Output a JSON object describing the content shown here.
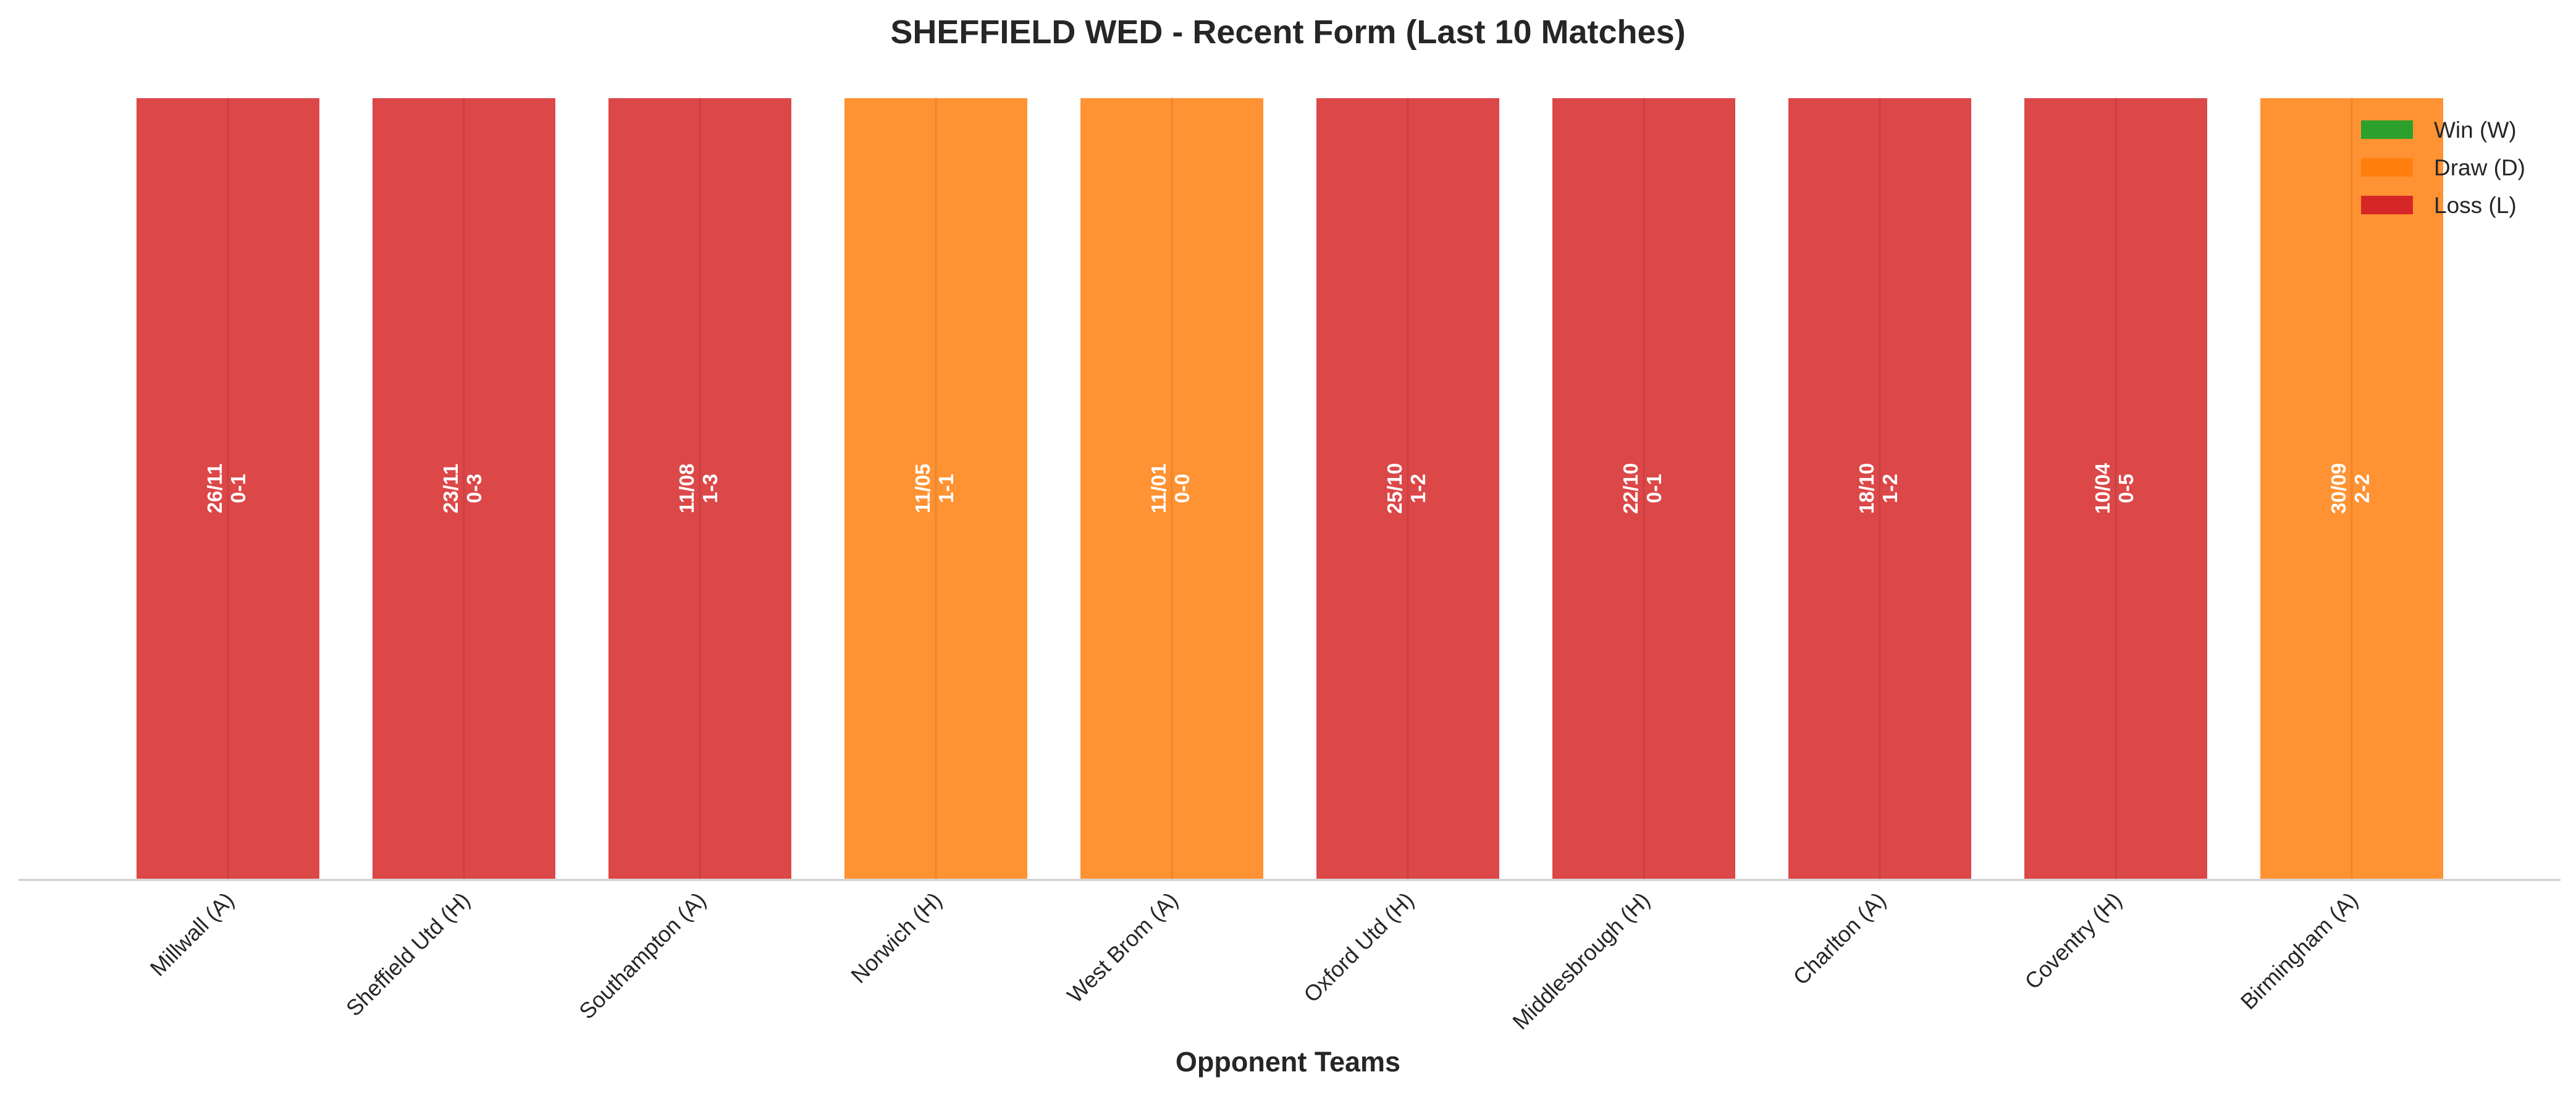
{
  "chart_data": {
    "type": "bar",
    "title": "SHEFFIELD WED - Recent Form (Last 10 Matches)",
    "xlabel": "Opponent Teams",
    "ylabel": "",
    "grid": false,
    "legend_position": "top-right",
    "legend": [
      {
        "label": "Win (W)",
        "color": "#2ca02c"
      },
      {
        "label": "Draw (D)",
        "color": "#ff7f0e"
      },
      {
        "label": "Loss (L)",
        "color": "#d62728"
      }
    ],
    "categories": [
      "Millwall (A)",
      "Sheffield Utd (H)",
      "Southampton (A)",
      "Norwich (H)",
      "West Brom (A)",
      "Oxford Utd (H)",
      "Middlesbrough (H)",
      "Charlton (A)",
      "Coventry (H)",
      "Birmingham (A)"
    ],
    "values": [
      1,
      1,
      1,
      1,
      1,
      1,
      1,
      1,
      1,
      1
    ],
    "results": [
      "L",
      "L",
      "L",
      "D",
      "D",
      "L",
      "L",
      "L",
      "L",
      "D"
    ],
    "dates": [
      "26/11",
      "23/11",
      "11/08",
      "11/05",
      "11/01",
      "25/10",
      "22/10",
      "18/10",
      "10/04",
      "30/09"
    ],
    "scores": [
      "0-1",
      "0-3",
      "1-3",
      "1-1",
      "0-0",
      "1-2",
      "0-1",
      "1-2",
      "0-5",
      "2-2"
    ]
  }
}
